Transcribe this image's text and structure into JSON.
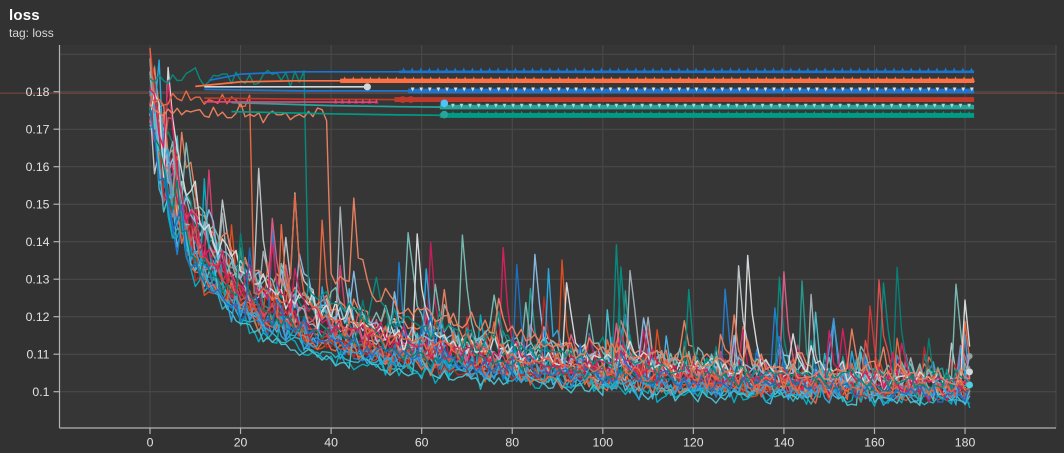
{
  "header": {
    "title": "loss",
    "subtitle": "tag: loss"
  },
  "chart_data": {
    "type": "line",
    "title": "loss",
    "tag": "tag: loss",
    "xlabel": "",
    "ylabel": "",
    "xlim": [
      -20,
      200
    ],
    "ylim": [
      0.0903,
      0.1925
    ],
    "grid": true,
    "legend": "none",
    "x_ticks": [
      {
        "v": 0,
        "l": "0"
      },
      {
        "v": 20,
        "l": "20"
      },
      {
        "v": 40,
        "l": "40"
      },
      {
        "v": 60,
        "l": "60"
      },
      {
        "v": 80,
        "l": "80"
      },
      {
        "v": 100,
        "l": "100"
      },
      {
        "v": 120,
        "l": "120"
      },
      {
        "v": 140,
        "l": "140"
      },
      {
        "v": 160,
        "l": "160"
      },
      {
        "v": 180,
        "l": "180"
      }
    ],
    "y_ticks": [
      {
        "v": 0.18,
        "l": "0.18"
      },
      {
        "v": 0.17,
        "l": "0.17"
      },
      {
        "v": 0.16,
        "l": "0.16"
      },
      {
        "v": 0.15,
        "l": "0.15"
      },
      {
        "v": 0.14,
        "l": "0.14"
      },
      {
        "v": 0.13,
        "l": "0.13"
      },
      {
        "v": 0.12,
        "l": "0.12"
      },
      {
        "v": 0.11,
        "l": "0.11"
      },
      {
        "v": 0.1,
        "l": "0.1"
      }
    ],
    "y_grid_extra": [
      0.19
    ],
    "colors": {
      "page_bg": "#323232",
      "plot_bg": "#363636",
      "grid": "#4b4b4b",
      "axis": "#b3b3b3",
      "tick_label": "#e2e2e2",
      "title": "#ffffff",
      "subtitle": "#d8d8d8"
    },
    "reference_line": {
      "value": 0.1796,
      "color": "rgba(158,84,64,0.45)",
      "full_width": true
    },
    "x_end": 181,
    "noise": {
      "base": 0.0014,
      "spike_p": 0.055,
      "big_spike_p": 0.012,
      "early_chaos": 0.0065
    },
    "noisy_runs": [
      {
        "c": "#ff7043",
        "f": 0.0985,
        "a1": 0.05,
        "t1": 7,
        "a2": 0.031,
        "t2": 55,
        "nz": 1.2,
        "sd": 101
      },
      {
        "c": "#4fc3f7",
        "f": 0.0975,
        "a1": 0.045,
        "t1": 9,
        "a2": 0.028,
        "t2": 60,
        "nz": 1.1,
        "sd": 102
      },
      {
        "c": "#26a69a",
        "f": 0.099,
        "a1": 0.048,
        "t1": 6,
        "a2": 0.033,
        "t2": 52,
        "nz": 1.0,
        "sd": 103
      },
      {
        "c": "#e53935",
        "f": 0.098,
        "a1": 0.052,
        "t1": 8,
        "a2": 0.03,
        "t2": 58,
        "nz": 1.1,
        "sd": 104
      },
      {
        "c": "#ec407a",
        "f": 0.0995,
        "a1": 0.046,
        "t1": 10,
        "a2": 0.029,
        "t2": 62,
        "nz": 1.2,
        "sd": 105
      },
      {
        "c": "#42a5f5",
        "f": 0.0988,
        "a1": 0.05,
        "t1": 7,
        "a2": 0.032,
        "t2": 48,
        "nz": 1.0,
        "sd": 106
      },
      {
        "c": "#cfd8dc",
        "f": 0.1,
        "a1": 0.044,
        "t1": 11,
        "a2": 0.034,
        "t2": 65,
        "nz": 1.3,
        "sd": 107
      },
      {
        "c": "#26c6da",
        "f": 0.097,
        "a1": 0.049,
        "t1": 8,
        "a2": 0.027,
        "t2": 55,
        "nz": 0.9,
        "sd": 108
      },
      {
        "c": "#f4511e",
        "f": 0.0992,
        "a1": 0.051,
        "t1": 6,
        "a2": 0.031,
        "t2": 50,
        "nz": 1.15,
        "sd": 109
      },
      {
        "c": "#009688",
        "f": 0.1002,
        "a1": 0.047,
        "t1": 9,
        "a2": 0.035,
        "t2": 68,
        "nz": 1.05,
        "sd": 110
      },
      {
        "c": "#1e88e5",
        "f": 0.0978,
        "a1": 0.053,
        "t1": 7,
        "a2": 0.029,
        "t2": 57,
        "nz": 1.0,
        "sd": 111
      },
      {
        "c": "#f06292",
        "f": 0.1008,
        "a1": 0.045,
        "t1": 12,
        "a2": 0.03,
        "t2": 63,
        "nz": 1.1,
        "sd": 112
      },
      {
        "c": "#b0bec5",
        "f": 0.0998,
        "a1": 0.048,
        "t1": 8,
        "a2": 0.033,
        "t2": 59,
        "nz": 1.2,
        "sd": 113
      },
      {
        "c": "#ff8a65",
        "f": 0.1012,
        "a1": 0.046,
        "t1": 10,
        "a2": 0.036,
        "t2": 70,
        "nz": 1.15,
        "sd": 114
      },
      {
        "c": "#00bcd4",
        "f": 0.0968,
        "a1": 0.05,
        "t1": 7,
        "a2": 0.026,
        "t2": 54,
        "nz": 0.95,
        "sd": 115
      },
      {
        "c": "#d81b60",
        "f": 0.0993,
        "a1": 0.049,
        "t1": 9,
        "a2": 0.031,
        "t2": 61,
        "nz": 1.05,
        "sd": 116
      },
      {
        "c": "#90caf9",
        "f": 0.1005,
        "a1": 0.044,
        "t1": 11,
        "a2": 0.034,
        "t2": 66,
        "nz": 1.1,
        "sd": 117
      },
      {
        "c": "#c62828",
        "f": 0.0987,
        "a1": 0.052,
        "t1": 6,
        "a2": 0.03,
        "t2": 53,
        "nz": 1.0,
        "sd": 118
      },
      {
        "c": "#80cbc4",
        "f": 0.101,
        "a1": 0.045,
        "t1": 10,
        "a2": 0.035,
        "t2": 72,
        "nz": 1.1,
        "sd": 119
      },
      {
        "c": "#ff7043",
        "f": 0.0982,
        "a1": 0.051,
        "t1": 8,
        "a2": 0.028,
        "t2": 56,
        "nz": 1.2,
        "sd": 120
      },
      {
        "c": "#4dd0e1",
        "f": 0.0962,
        "a1": 0.047,
        "t1": 9,
        "a2": 0.024,
        "t2": 58,
        "nz": 0.7,
        "sd": 121
      },
      {
        "c": "#ef5350",
        "f": 0.1,
        "a1": 0.05,
        "t1": 7,
        "a2": 0.032,
        "t2": 60,
        "nz": 1.15,
        "sd": 122
      },
      {
        "c": "#29b6f6",
        "f": 0.0984,
        "a1": 0.048,
        "t1": 8,
        "a2": 0.029,
        "t2": 51,
        "nz": 1.05,
        "sd": 123
      },
      {
        "c": "#eceff1",
        "f": 0.1015,
        "a1": 0.043,
        "t1": 12,
        "a2": 0.033,
        "t2": 64,
        "nz": 1.25,
        "sd": 124
      },
      {
        "c": "#00897b",
        "f": 0.0996,
        "a1": 0.049,
        "t1": 7,
        "a2": 0.031,
        "t2": 57,
        "nz": 1.0,
        "sd": 125
      },
      {
        "c": "#e91e63",
        "f": 0.1004,
        "a1": 0.047,
        "t1": 9,
        "a2": 0.032,
        "t2": 62,
        "nz": 1.1,
        "sd": 126
      },
      {
        "c": "#1976d2",
        "f": 0.099,
        "a1": 0.051,
        "t1": 6,
        "a2": 0.03,
        "t2": 55,
        "nz": 1.0,
        "sd": 127
      },
      {
        "c": "#ff7043",
        "f": 0.0992,
        "a1": 0,
        "t1": 6,
        "a2": 0.028,
        "t2": 55,
        "nz": 1.1,
        "sd": 128,
        "hv": 0.1776,
        "hu": 23
      },
      {
        "c": "#009688",
        "f": 0.0998,
        "a1": 0,
        "t1": 5,
        "a2": 0.026,
        "t2": 58,
        "nz": 1.0,
        "sd": 129,
        "hv": 0.1838,
        "hu": 35
      },
      {
        "c": "#ff8a65",
        "f": 0.1006,
        "a1": 0,
        "t1": 6,
        "a2": 0.029,
        "t2": 60,
        "nz": 1.05,
        "sd": 130,
        "hv": 0.1742,
        "hu": 40
      }
    ],
    "plateau_runs": [
      {
        "c": "#1976d2",
        "v": 0.1853,
        "w": 2.6,
        "m": "up",
        "mc": "#1976d2",
        "mf": 56,
        "lead": [
          [
            13,
            0.183
          ],
          [
            20,
            0.1847
          ],
          [
            32,
            0.1853
          ]
        ]
      },
      {
        "c": "#ff7043",
        "v": 0.1829,
        "w": 4.4,
        "m": "up",
        "mc": "#ff7043",
        "mf": 43,
        "lead": [
          [
            10,
            0.1814
          ],
          [
            20,
            0.1826
          ],
          [
            32,
            0.1829
          ]
        ]
      },
      {
        "c": "#1976d2",
        "v": 0.1802,
        "w": 4.6,
        "m": "down",
        "mc": "#ead9c9",
        "mf": 58,
        "lead": [
          [
            12,
            0.1806
          ],
          [
            34,
            0.1802
          ]
        ]
      },
      {
        "c": "#c0392b",
        "v": 0.1779,
        "w": 4.8,
        "m": "none",
        "mc": "",
        "mf": 55,
        "lead": [
          [
            12,
            0.1783
          ],
          [
            34,
            0.178
          ]
        ]
      },
      {
        "c": "#26a69a",
        "v": 0.1759,
        "w": 4.6,
        "m": "down",
        "mc": "#aadcd4",
        "mf": 65,
        "lead": [
          [
            18,
            0.1771
          ],
          [
            40,
            0.1763
          ],
          [
            55,
            0.176
          ]
        ]
      },
      {
        "c": "#009b84",
        "v": 0.1737,
        "w": 5.0,
        "m": "up",
        "mc": "#009b84",
        "mf": 65,
        "lead": [
          [
            18,
            0.1747
          ],
          [
            40,
            0.1741
          ],
          [
            55,
            0.1738
          ]
        ]
      }
    ],
    "plateau_end": 182,
    "short_segments": [
      {
        "c": "#cfd8dc",
        "w": 1.6,
        "pts": [
          [
            12,
            0.1813
          ],
          [
            48,
            0.1813
          ]
        ],
        "m": "none"
      },
      {
        "c": "#ec407a",
        "w": 1.6,
        "pts": [
          [
            12,
            0.1773
          ],
          [
            50,
            0.1772
          ]
        ],
        "m": "up",
        "mc": "#ec407a",
        "mf": 41,
        "mt": 50
      }
    ],
    "dots": [
      {
        "x": 48,
        "v": 0.1813,
        "c": "#cfd8dc",
        "r": 3.6
      },
      {
        "x": 55.8,
        "v": 0.1779,
        "c": "#c0392b",
        "r": 3.4
      },
      {
        "x": 57.6,
        "v": 0.1779,
        "c": "#c0392b",
        "r": 3.4
      },
      {
        "x": 65,
        "v": 0.1769,
        "c": "#4fc3f7",
        "r": 3.8
      },
      {
        "x": 65,
        "v": 0.1739,
        "c": "#26a69a",
        "r": 3.8
      },
      {
        "x": 181,
        "v": 0.1053,
        "c": "#cfd8dc",
        "r": 3.4
      },
      {
        "x": 181,
        "v": 0.1018,
        "c": "#4dd0e1",
        "r": 3.4
      },
      {
        "x": 181,
        "v": 0.1095,
        "c": "#90a4ae",
        "r": 3.0
      }
    ]
  }
}
